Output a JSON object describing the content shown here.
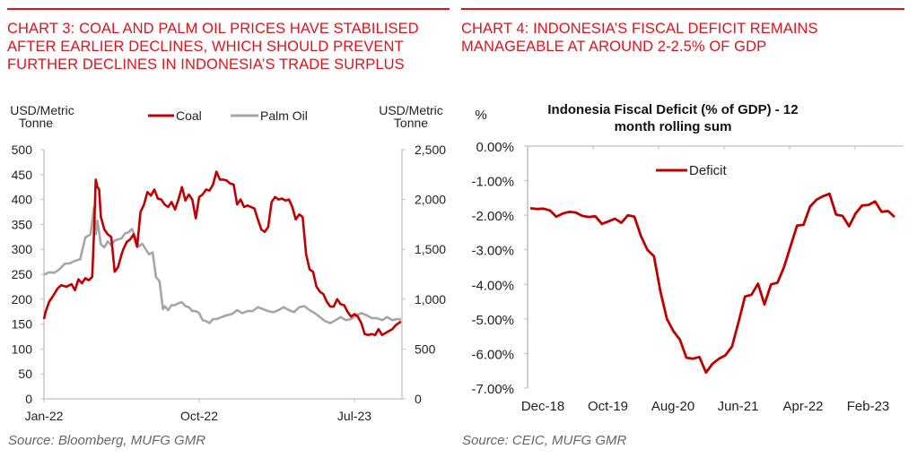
{
  "left_panel": {
    "heading_lines": [
      "CHART 3: COAL AND PALM OIL PRICES HAVE STABILISED",
      "AFTER EARLIER DECLINES, WHICH SHOULD PREVENT",
      "FURTHER DECLINES IN INDONESIA’S TRADE SURPLUS"
    ],
    "source": "Source: Bloomberg, MUFG GMR"
  },
  "right_panel": {
    "heading_lines": [
      "CHART 4: INDONESIA’S FISCAL DEFICIT REMAINS",
      "MANAGEABLE AT AROUND 2-2.5% OF GDP"
    ],
    "source": "Source: CEIC, MUFG GMR"
  },
  "colors": {
    "heading": "#e2121b",
    "coal": "#c00000",
    "palm_oil": "#a6a6a6",
    "deficit": "#c00000",
    "axis": "#bfbfbf"
  },
  "chart_data": [
    {
      "type": "line",
      "title": "",
      "xlabel": "",
      "ylabel": "USD/Metric Tonne",
      "ylabel_lines": [
        "USD/Metric",
        "Tonne"
      ],
      "y2label": "USD/Metric Tonne",
      "y2label_lines": [
        "USD/Metric",
        "Tonne"
      ],
      "x_tick_labels": [
        "Jan-22",
        "Oct-22",
        "Jul-23"
      ],
      "x_ticks_month_index": [
        0,
        9,
        18
      ],
      "x_range_month_index": [
        0,
        20.7
      ],
      "ylim": [
        0,
        500
      ],
      "y_ticks": [
        0,
        50,
        100,
        150,
        200,
        250,
        300,
        350,
        400,
        450,
        500
      ],
      "y_tick_labels": [
        "0",
        "50",
        "100",
        "150",
        "200",
        "250",
        "300",
        "350",
        "400",
        "450",
        "500"
      ],
      "y2lim": [
        0,
        2500
      ],
      "y2_ticks": [
        0,
        500,
        1000,
        1500,
        2000,
        2500
      ],
      "y2_tick_labels": [
        "0",
        "500",
        "1,000",
        "1,500",
        "2,000",
        "2,500"
      ],
      "grid": false,
      "legend_position": "top-center",
      "series": [
        {
          "name": "Coal",
          "axis": "left",
          "x_month_index": [
            0,
            0.1,
            0.3,
            0.5,
            0.8,
            1.0,
            1.3,
            1.6,
            1.8,
            2.0,
            2.2,
            2.4,
            2.6,
            2.8,
            2.9,
            3.0,
            3.1,
            3.2,
            3.3,
            3.5,
            3.7,
            3.9,
            4.1,
            4.3,
            4.5,
            4.6,
            4.8,
            5.0,
            5.2,
            5.4,
            5.6,
            5.8,
            6.0,
            6.2,
            6.4,
            6.6,
            6.8,
            7.0,
            7.2,
            7.4,
            7.6,
            7.8,
            8.0,
            8.2,
            8.4,
            8.6,
            8.8,
            9.0,
            9.2,
            9.4,
            9.6,
            9.8,
            10.0,
            10.2,
            10.4,
            10.6,
            10.8,
            11.0,
            11.2,
            11.4,
            11.6,
            11.8,
            12.0,
            12.2,
            12.4,
            12.6,
            12.8,
            13.0,
            13.2,
            13.4,
            13.6,
            13.8,
            14.0,
            14.2,
            14.4,
            14.6,
            14.8,
            15.0,
            15.2,
            15.4,
            15.6,
            15.8,
            16.0,
            16.2,
            16.4,
            16.6,
            16.8,
            17.0,
            17.2,
            17.4,
            17.6,
            17.8,
            18.0,
            18.2,
            18.4,
            18.6,
            18.8,
            19.0,
            19.2,
            19.4,
            19.6,
            19.8,
            20.0,
            20.2,
            20.4,
            20.7
          ],
          "values": [
            160,
            175,
            195,
            205,
            222,
            228,
            225,
            230,
            218,
            240,
            232,
            242,
            238,
            245,
            330,
            440,
            425,
            420,
            365,
            340,
            330,
            325,
            255,
            265,
            290,
            300,
            315,
            320,
            330,
            305,
            375,
            390,
            415,
            408,
            420,
            402,
            400,
            390,
            385,
            395,
            380,
            400,
            425,
            398,
            410,
            400,
            362,
            405,
            410,
            420,
            418,
            430,
            456,
            440,
            440,
            438,
            432,
            430,
            390,
            400,
            385,
            388,
            385,
            382,
            360,
            340,
            335,
            345,
            395,
            405,
            400,
            402,
            398,
            400,
            385,
            360,
            370,
            365,
            290,
            260,
            255,
            225,
            215,
            210,
            195,
            185,
            185,
            200,
            190,
            188,
            175,
            165,
            170,
            165,
            152,
            130,
            128,
            130,
            128,
            140,
            128,
            132,
            136,
            140,
            148,
            155,
            160,
            158,
            160,
            160
          ]
        },
        {
          "name": "Palm Oil",
          "axis": "right",
          "x_month_index": [
            0,
            0.3,
            0.6,
            0.9,
            1.2,
            1.5,
            1.8,
            2.1,
            2.4,
            2.7,
            2.9,
            3.0,
            3.1,
            3.3,
            3.5,
            3.7,
            3.9,
            4.1,
            4.3,
            4.5,
            4.7,
            4.9,
            5.1,
            5.3,
            5.5,
            5.7,
            5.9,
            6.1,
            6.3,
            6.5,
            6.7,
            6.9,
            7.0,
            7.2,
            7.4,
            7.6,
            7.8,
            8.0,
            8.2,
            8.4,
            8.6,
            8.8,
            9.0,
            9.2,
            9.4,
            9.6,
            9.8,
            10.0,
            10.3,
            10.6,
            10.9,
            11.2,
            11.5,
            11.8,
            12.1,
            12.4,
            12.7,
            13.0,
            13.3,
            13.6,
            13.9,
            14.2,
            14.5,
            14.8,
            15.1,
            15.4,
            15.7,
            16.0,
            16.3,
            16.6,
            16.9,
            17.2,
            17.5,
            17.8,
            18.1,
            18.4,
            18.7,
            19.0,
            19.3,
            19.6,
            19.9,
            20.2,
            20.5,
            20.7
          ],
          "values": [
            1245,
            1270,
            1265,
            1300,
            1355,
            1360,
            1385,
            1400,
            1620,
            1650,
            1920,
            1650,
            1790,
            1550,
            1520,
            1580,
            1540,
            1590,
            1600,
            1610,
            1660,
            1670,
            1705,
            1620,
            1530,
            1555,
            1500,
            1450,
            1470,
            1220,
            1180,
            900,
            930,
            890,
            940,
            940,
            960,
            970,
            930,
            920,
            880,
            880,
            860,
            790,
            780,
            760,
            800,
            800,
            820,
            840,
            850,
            890,
            860,
            880,
            880,
            920,
            900,
            880,
            870,
            890,
            920,
            890,
            870,
            920,
            930,
            890,
            860,
            820,
            780,
            760,
            790,
            820,
            790,
            800,
            840,
            860,
            840,
            810,
            810,
            790,
            820,
            790,
            800,
            795
          ]
        }
      ]
    },
    {
      "type": "line",
      "title": "Indonesia Fiscal Deficit (% of GDP) - 12 month rolling sum",
      "title_lines": [
        "Indonesia Fiscal Deficit (% of GDP) - 12",
        "month rolling sum"
      ],
      "xlabel": "",
      "ylabel": "%",
      "x_tick_labels": [
        "Dec-18",
        "Oct-19",
        "Aug-20",
        "Jun-21",
        "Apr-22",
        "Feb-23"
      ],
      "x_ticks_month_index": [
        0,
        10,
        20,
        30,
        40,
        50
      ],
      "ylim": [
        -7,
        0
      ],
      "y_ticks": [
        0,
        -1,
        -2,
        -3,
        -4,
        -5,
        -6,
        -7
      ],
      "y_tick_labels": [
        "0.00%",
        "-1.00%",
        "-2.00%",
        "-3.00%",
        "-4.00%",
        "-5.00%",
        "-6.00%",
        "-7.00%"
      ],
      "grid": false,
      "legend_position": "top-center",
      "series": [
        {
          "name": "Deficit",
          "x_month_index": [
            0,
            1,
            2,
            3,
            4,
            5,
            6,
            7,
            8,
            9,
            10,
            11,
            12,
            13,
            14,
            15,
            16,
            17,
            18,
            19,
            20,
            21,
            22,
            23,
            24,
            25,
            26,
            27,
            28,
            29,
            30,
            31,
            32,
            33,
            34,
            35,
            36,
            37,
            38,
            39,
            40,
            41,
            42,
            43,
            44,
            45,
            46,
            47,
            48,
            49,
            50,
            51,
            52,
            53,
            54,
            55,
            56
          ],
          "values": [
            -1.8,
            -1.82,
            -1.81,
            -1.86,
            -2.04,
            -1.95,
            -1.9,
            -1.92,
            -2.02,
            -2.05,
            -2.03,
            -2.25,
            -2.18,
            -2.1,
            -2.22,
            -2.0,
            -2.04,
            -2.6,
            -3.0,
            -3.18,
            -4.2,
            -5.0,
            -5.35,
            -5.6,
            -6.12,
            -6.15,
            -6.1,
            -6.55,
            -6.3,
            -6.15,
            -6.05,
            -5.8,
            -5.1,
            -4.35,
            -4.3,
            -3.98,
            -4.58,
            -4.0,
            -3.95,
            -3.5,
            -2.9,
            -2.3,
            -2.28,
            -1.75,
            -1.55,
            -1.45,
            -1.38,
            -1.98,
            -2.02,
            -2.32,
            -1.95,
            -1.72,
            -1.7,
            -1.6,
            -1.9,
            -1.88,
            -2.05
          ]
        }
      ]
    }
  ]
}
